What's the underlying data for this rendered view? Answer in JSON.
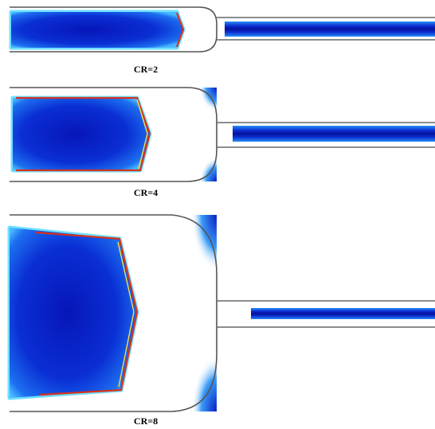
{
  "panels": [
    {
      "label": "CR=2"
    },
    {
      "label": "CR=4"
    },
    {
      "label": "CR=8"
    }
  ]
}
